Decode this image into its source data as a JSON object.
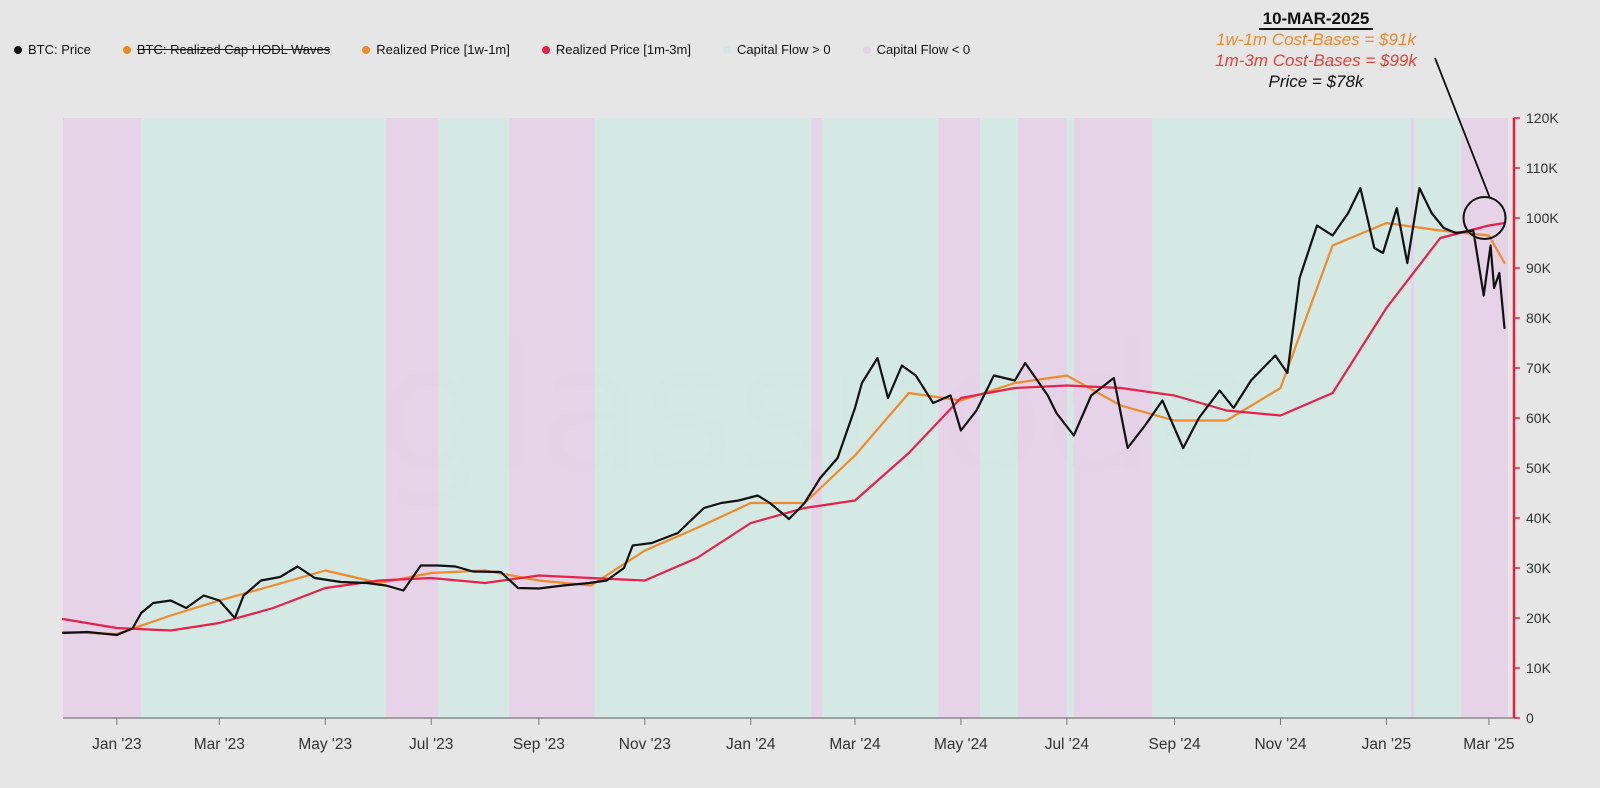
{
  "legend": [
    {
      "label": "BTC: Price",
      "color": "#111111",
      "disabled": false
    },
    {
      "label": "BTC: Realized Cap HODL Waves",
      "color": "#e8891f",
      "disabled": true
    },
    {
      "label": "Realized Price [1w-1m]",
      "color": "#f08a2a",
      "disabled": false
    },
    {
      "label": "Realized Price [1m-3m]",
      "color": "#e8214b",
      "disabled": false
    },
    {
      "label": "Capital Flow > 0",
      "color": "#d3e8e4",
      "disabled": false
    },
    {
      "label": "Capital Flow < 0",
      "color": "#e6d2e8",
      "disabled": false
    }
  ],
  "watermark": "glassnode",
  "annotation": {
    "date": "10-MAR-2025",
    "line1": "1w-1m Cost-Bases = $91k",
    "line2": "1m-3m Cost-Bases = $99k",
    "line3": "Price = $78k"
  },
  "colors": {
    "price": "#111111",
    "cost_1w_1m": "#f08a2a",
    "cost_1m_3m": "#e8214b",
    "flow_positive": "#d3e8e4",
    "flow_negative": "#e6d2e8",
    "right_axis": "#e8213a"
  },
  "chart_data": {
    "type": "line",
    "title": "",
    "xlabel": "",
    "ylabel": "",
    "x_range": [
      "2022-12-01",
      "2025-03-12"
    ],
    "ylim": [
      0,
      120000
    ],
    "y_axis_side": "right",
    "y_ticks": [
      0,
      10000,
      20000,
      30000,
      40000,
      50000,
      60000,
      70000,
      80000,
      90000,
      100000,
      110000,
      120000
    ],
    "y_tick_labels": [
      "0",
      "10K",
      "20K",
      "30K",
      "40K",
      "50K",
      "60K",
      "70K",
      "80K",
      "90K",
      "100K",
      "110K",
      "120K"
    ],
    "x_ticks": [
      "2023-01-01",
      "2023-03-01",
      "2023-05-01",
      "2023-07-01",
      "2023-09-01",
      "2023-11-01",
      "2024-01-01",
      "2024-03-01",
      "2024-05-01",
      "2024-07-01",
      "2024-09-01",
      "2024-11-01",
      "2025-01-01",
      "2025-03-01"
    ],
    "x_tick_labels": [
      "Jan '23",
      "Mar '23",
      "May '23",
      "Jul '23",
      "Sep '23",
      "Nov '23",
      "Jan '24",
      "Mar '24",
      "May '24",
      "Jul '24",
      "Sep '24",
      "Nov '24",
      "Jan '25",
      "Mar '25"
    ],
    "grid": false,
    "legend_position": "top-left",
    "series": [
      {
        "name": "BTC: Price",
        "x": [
          "2022-12-01",
          "2022-12-15",
          "2023-01-01",
          "2023-01-10",
          "2023-01-15",
          "2023-01-22",
          "2023-02-01",
          "2023-02-10",
          "2023-02-20",
          "2023-03-01",
          "2023-03-10",
          "2023-03-15",
          "2023-03-25",
          "2023-04-05",
          "2023-04-15",
          "2023-04-25",
          "2023-05-10",
          "2023-05-25",
          "2023-06-05",
          "2023-06-15",
          "2023-06-25",
          "2023-07-05",
          "2023-07-15",
          "2023-07-25",
          "2023-08-10",
          "2023-08-20",
          "2023-09-01",
          "2023-09-15",
          "2023-09-30",
          "2023-10-10",
          "2023-10-20",
          "2023-10-25",
          "2023-11-05",
          "2023-11-20",
          "2023-12-05",
          "2023-12-15",
          "2023-12-25",
          "2024-01-05",
          "2024-01-12",
          "2024-01-23",
          "2024-02-01",
          "2024-02-10",
          "2024-02-20",
          "2024-03-01",
          "2024-03-05",
          "2024-03-14",
          "2024-03-20",
          "2024-03-28",
          "2024-04-05",
          "2024-04-15",
          "2024-04-25",
          "2024-05-01",
          "2024-05-10",
          "2024-05-20",
          "2024-06-01",
          "2024-06-07",
          "2024-06-20",
          "2024-06-25",
          "2024-07-05",
          "2024-07-15",
          "2024-07-28",
          "2024-08-05",
          "2024-08-15",
          "2024-08-25",
          "2024-09-06",
          "2024-09-15",
          "2024-09-27",
          "2024-10-05",
          "2024-10-15",
          "2024-10-29",
          "2024-11-05",
          "2024-11-12",
          "2024-11-22",
          "2024-12-01",
          "2024-12-10",
          "2024-12-17",
          "2024-12-25",
          "2024-12-30",
          "2025-01-07",
          "2025-01-13",
          "2025-01-20",
          "2025-01-27",
          "2025-02-03",
          "2025-02-10",
          "2025-02-20",
          "2025-02-26",
          "2025-03-02",
          "2025-03-04",
          "2025-03-07",
          "2025-03-10"
        ],
        "values": [
          17000,
          17200,
          16600,
          17900,
          21000,
          23000,
          23500,
          22000,
          24500,
          23500,
          20000,
          24500,
          27500,
          28200,
          30300,
          28000,
          27200,
          27000,
          26500,
          25500,
          30500,
          30500,
          30300,
          29300,
          29200,
          26000,
          25900,
          26500,
          27000,
          27500,
          30000,
          34500,
          35000,
          37000,
          42000,
          43000,
          43500,
          44500,
          43000,
          39800,
          43000,
          48000,
          52000,
          62000,
          67000,
          72000,
          64000,
          70500,
          68500,
          63000,
          64500,
          57500,
          61500,
          68500,
          67500,
          71000,
          64500,
          61000,
          56500,
          64500,
          68000,
          54000,
          58500,
          63500,
          54000,
          60000,
          65500,
          62000,
          67500,
          72500,
          69000,
          88000,
          98500,
          96500,
          101000,
          106000,
          94000,
          93000,
          102000,
          91000,
          106000,
          101000,
          98000,
          97000,
          97500,
          84500,
          94500,
          86000,
          89000,
          78000
        ],
        "color": "#111111"
      },
      {
        "name": "Realized Price [1w-1m]",
        "x": [
          "2022-12-01",
          "2023-01-01",
          "2023-02-01",
          "2023-03-01",
          "2023-04-01",
          "2023-05-01",
          "2023-06-01",
          "2023-07-01",
          "2023-08-01",
          "2023-09-01",
          "2023-10-01",
          "2023-11-01",
          "2023-12-01",
          "2024-01-01",
          "2024-02-01",
          "2024-03-01",
          "2024-04-01",
          "2024-05-01",
          "2024-06-01",
          "2024-07-01",
          "2024-08-01",
          "2024-09-01",
          "2024-10-01",
          "2024-11-01",
          "2024-12-01",
          "2025-01-01",
          "2025-02-01",
          "2025-03-01",
          "2025-03-10"
        ],
        "values": [
          17200,
          16800,
          20500,
          23500,
          26500,
          29500,
          27000,
          29000,
          29500,
          27500,
          26500,
          33500,
          38000,
          43000,
          43000,
          52500,
          65000,
          63500,
          67000,
          68500,
          62500,
          59500,
          59500,
          66000,
          94500,
          99000,
          97500,
          96500,
          91000
        ],
        "color": "#f08a2a"
      },
      {
        "name": "Realized Price [1m-3m]",
        "x": [
          "2022-12-01",
          "2023-01-01",
          "2023-02-01",
          "2023-03-01",
          "2023-04-01",
          "2023-05-01",
          "2023-06-01",
          "2023-07-01",
          "2023-08-01",
          "2023-09-01",
          "2023-10-01",
          "2023-11-01",
          "2023-12-01",
          "2024-01-01",
          "2024-02-01",
          "2024-03-01",
          "2024-04-01",
          "2024-05-01",
          "2024-06-01",
          "2024-07-01",
          "2024-08-01",
          "2024-09-01",
          "2024-10-01",
          "2024-11-01",
          "2024-12-01",
          "2025-01-01",
          "2025-02-01",
          "2025-03-01",
          "2025-03-10"
        ],
        "values": [
          19800,
          18000,
          17500,
          19000,
          22000,
          26000,
          27500,
          28000,
          27000,
          28500,
          28000,
          27500,
          32000,
          39000,
          42000,
          43500,
          53000,
          64000,
          66000,
          66500,
          66000,
          64500,
          61500,
          60500,
          65000,
          82000,
          96000,
          98500,
          99000
        ],
        "color": "#e8214b"
      }
    ],
    "capital_flow_bands": [
      {
        "start": "2022-12-01",
        "end": "2023-01-15",
        "sign": "negative"
      },
      {
        "start": "2023-01-15",
        "end": "2023-06-05",
        "sign": "positive"
      },
      {
        "start": "2023-06-05",
        "end": "2023-07-05",
        "sign": "negative"
      },
      {
        "start": "2023-07-05",
        "end": "2023-08-15",
        "sign": "positive"
      },
      {
        "start": "2023-08-15",
        "end": "2023-10-03",
        "sign": "negative"
      },
      {
        "start": "2023-10-03",
        "end": "2024-02-05",
        "sign": "positive"
      },
      {
        "start": "2024-02-05",
        "end": "2024-02-11",
        "sign": "negative"
      },
      {
        "start": "2024-02-11",
        "end": "2024-04-18",
        "sign": "positive"
      },
      {
        "start": "2024-04-18",
        "end": "2024-05-12",
        "sign": "negative"
      },
      {
        "start": "2024-05-12",
        "end": "2024-06-03",
        "sign": "positive"
      },
      {
        "start": "2024-06-03",
        "end": "2024-07-01",
        "sign": "negative"
      },
      {
        "start": "2024-07-01",
        "end": "2024-07-05",
        "sign": "positive"
      },
      {
        "start": "2024-07-05",
        "end": "2024-08-19",
        "sign": "negative"
      },
      {
        "start": "2024-08-19",
        "end": "2025-01-15",
        "sign": "positive"
      },
      {
        "start": "2025-01-15",
        "end": "2025-01-17",
        "sign": "negative"
      },
      {
        "start": "2025-01-17",
        "end": "2025-02-13",
        "sign": "positive"
      },
      {
        "start": "2025-02-13",
        "end": "2025-03-12",
        "sign": "negative"
      }
    ]
  }
}
